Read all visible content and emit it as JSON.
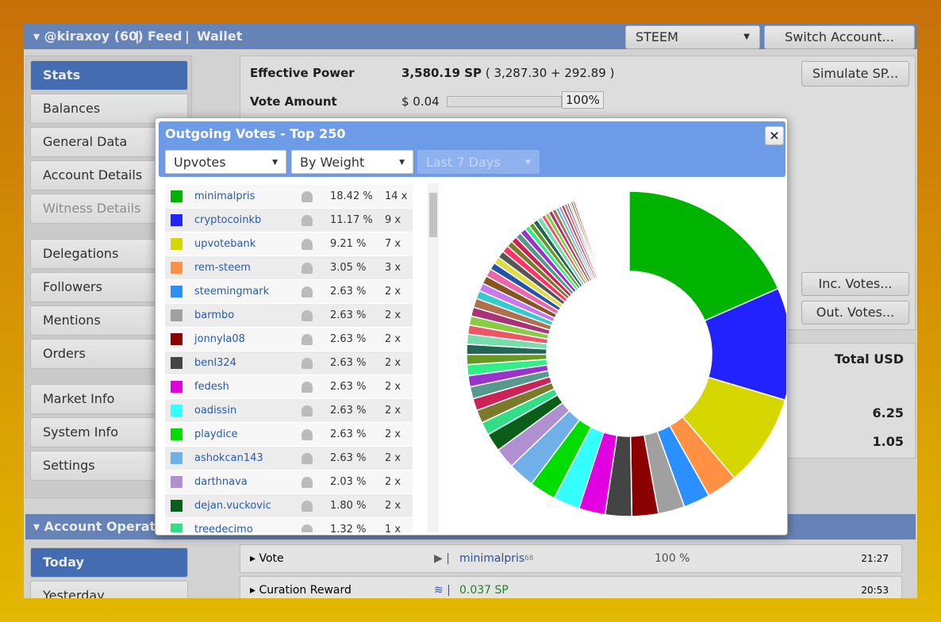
{
  "header": {
    "account": "@kiraxoy (60)",
    "feed": "Feed",
    "wallet": "Wallet",
    "currency": "STEEM",
    "switch_button": "Switch Account..."
  },
  "sidebar": {
    "items": [
      "Stats",
      "Balances",
      "General Data",
      "Account Details",
      "Witness Details",
      "Delegations",
      "Followers",
      "Mentions",
      "Orders",
      "Market Info",
      "System Info",
      "Settings"
    ],
    "section2_title": "Account Operations",
    "section2_items": [
      "Today",
      "Yesterday"
    ]
  },
  "stats": {
    "effective_power_label": "Effective Power",
    "effective_power": "3,580.19 SP",
    "effective_power_detail": "( 3,287.30 + 292.89 )",
    "vote_amount_label": "Vote Amount",
    "vote_amount": "$ 0.04",
    "vote_percent": "100%",
    "simulate_button": "Simulate SP...",
    "inc_votes_button": "Inc. Votes...",
    "out_votes_button": "Out. Votes...",
    "total_usd_label": "Total USD",
    "total_values": [
      "6.25",
      "1.05"
    ]
  },
  "operations": [
    {
      "type": "Vote",
      "account": "minimalpris",
      "reputation": "68",
      "weight": "100 %",
      "time": "21:27"
    },
    {
      "type": "Curation Reward",
      "amount": "0.037 SP",
      "time": "20:53"
    }
  ],
  "modal": {
    "title": "Outgoing Votes - Top 250",
    "filters": [
      "Upvotes",
      "By Weight",
      "Last 7 Days"
    ],
    "votes": {
      "names": [
        "minimalpris",
        "cryptocoinkb",
        "upvotebank",
        "rem-steem",
        "steemingmark",
        "barmbo",
        "jonnyla08",
        "benl324",
        "fedesh",
        "oadissin",
        "playdice",
        "ashokcan143",
        "darthnava",
        "dejan.vuckovic",
        "treedecimo"
      ],
      "colors": [
        "#00b300",
        "#2222ff",
        "#d6d600",
        "#ff9044",
        "#2a8fff",
        "#a0a0a0",
        "#8b0000",
        "#444444",
        "#e000e0",
        "#33ffff",
        "#00dd00",
        "#6fb0e8",
        "#b090d0",
        "#0a5e1a",
        "#33dd88"
      ],
      "values": [
        18.42,
        11.17,
        9.21,
        3.05,
        2.63,
        2.63,
        2.63,
        2.63,
        2.63,
        2.63,
        2.63,
        2.63,
        2.03,
        1.8,
        1.32
      ],
      "value_labels": [
        "18.42 %",
        "11.17 %",
        "9.21 %",
        "3.05 %",
        "2.63 %",
        "2.63 %",
        "2.63 %",
        "2.63 %",
        "2.63 %",
        "2.63 %",
        "2.63 %",
        "2.63 %",
        "2.03 %",
        "1.80 %",
        "1.32 %"
      ],
      "counts": [
        "14 x",
        "9 x",
        "7 x",
        "3 x",
        "2 x",
        "2 x",
        "2 x",
        "2 x",
        "2 x",
        "2 x",
        "2 x",
        "2 x",
        "2 x",
        "2 x",
        "1 x"
      ]
    },
    "other_values": [
      1.3,
      1.2,
      1.2,
      1.1,
      1.1,
      1.0,
      1.0,
      1.0,
      0.9,
      0.9,
      0.9,
      0.9,
      0.8,
      0.8,
      0.8,
      0.8,
      0.7,
      0.7,
      0.7,
      0.7,
      0.6,
      0.6,
      0.6,
      0.6,
      0.5,
      0.5,
      0.5,
      0.5,
      0.4,
      0.4,
      0.4,
      0.4,
      0.3,
      0.3,
      0.3,
      0.3,
      0.2,
      0.2,
      0.2,
      0.2,
      0.1,
      0.1,
      0.1,
      0.1,
      0.1,
      0.1,
      0.1,
      0.1,
      0.1,
      0.1,
      0.1,
      0.1,
      0.1,
      0.1,
      0.1,
      0.1,
      0.1,
      0.1,
      0.1,
      0.1,
      0.1,
      0.1,
      0.1,
      0.1,
      0.1,
      0.1,
      0.1,
      0.1
    ],
    "other_colors": [
      "#7a7a2a",
      "#cc2255",
      "#55998f",
      "#9933cc",
      "#33ee88",
      "#669922",
      "#226655",
      "#77ddaa",
      "#ee5566",
      "#88cc44",
      "#aa3377",
      "#b07050",
      "#33cccc",
      "#cc77ee",
      "#885522",
      "#ee66aa",
      "#2255aa",
      "#dddd44",
      "#555555",
      "#ff3366"
    ]
  }
}
